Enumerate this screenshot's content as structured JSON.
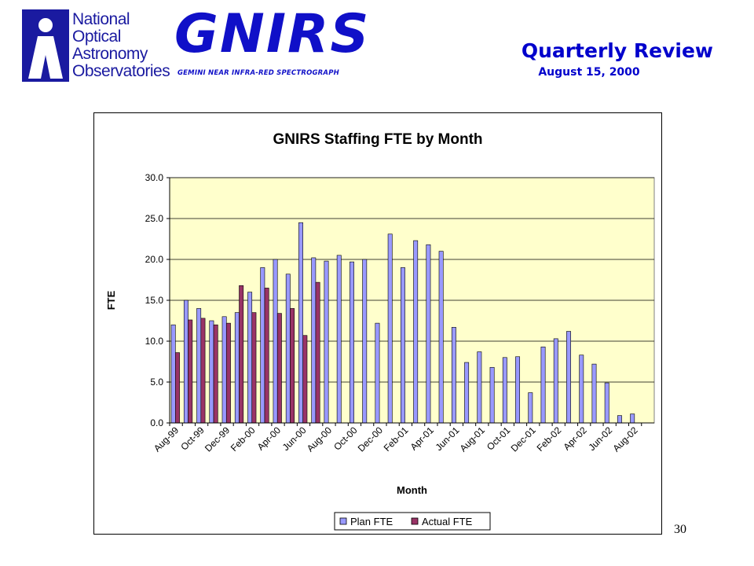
{
  "header": {
    "org_lines": [
      "National",
      "Optical",
      "Astronomy",
      "Observatories"
    ],
    "product_name": "GNIRS",
    "product_subtitle": "GEMINI NEAR INFRA-RED SPECTROGRAPH",
    "review_title": "Quarterly Review",
    "review_date": "August 15, 2000"
  },
  "page_number": "30",
  "colors": {
    "brand_blue": "#1010c8",
    "title_blue": "#0000cc",
    "plot_background": "#ffffcc",
    "plan_fill": "#9999ff",
    "actual_fill": "#993366"
  },
  "chart_data": {
    "type": "bar",
    "title": "GNIRS Staffing FTE by Month",
    "xlabel": "Month",
    "ylabel": "FTE",
    "ylim": [
      0,
      30
    ],
    "yticks": [
      "0.0",
      "5.0",
      "10.0",
      "15.0",
      "20.0",
      "25.0",
      "30.0"
    ],
    "grid": true,
    "legend_position": "bottom",
    "categories": [
      "Aug-99",
      "Sep-99",
      "Oct-99",
      "Nov-99",
      "Dec-99",
      "Jan-00",
      "Feb-00",
      "Mar-00",
      "Apr-00",
      "May-00",
      "Jun-00",
      "Jul-00",
      "Aug-00",
      "Sep-00",
      "Oct-00",
      "Nov-00",
      "Dec-00",
      "Jan-01",
      "Feb-01",
      "Mar-01",
      "Apr-01",
      "May-01",
      "Jun-01",
      "Jul-01",
      "Aug-01",
      "Sep-01",
      "Oct-01",
      "Nov-01",
      "Dec-01",
      "Jan-02",
      "Feb-02",
      "Mar-02",
      "Apr-02",
      "May-02",
      "Jun-02",
      "Jul-02",
      "Aug-02",
      "Sep-02"
    ],
    "tick_labels": [
      "Aug-99",
      "",
      "Oct-99",
      "",
      "Dec-99",
      "",
      "Feb-00",
      "",
      "Apr-00",
      "",
      "Jun-00",
      "",
      "Aug-00",
      "",
      "Oct-00",
      "",
      "Dec-00",
      "",
      "Feb-01",
      "",
      "Apr-01",
      "",
      "Jun-01",
      "",
      "Aug-01",
      "",
      "Oct-01",
      "",
      "Dec-01",
      "",
      "Feb-02",
      "",
      "Apr-02",
      "",
      "Jun-02",
      "",
      "Aug-02",
      ""
    ],
    "series": [
      {
        "name": "Plan FTE",
        "values": [
          12.0,
          15.0,
          14.0,
          12.5,
          13.0,
          13.5,
          16.0,
          19.0,
          20.0,
          18.2,
          24.5,
          20.2,
          19.8,
          20.5,
          19.7,
          20.0,
          12.2,
          23.1,
          19.0,
          22.3,
          21.8,
          21.0,
          11.7,
          7.4,
          8.7,
          6.8,
          8.0,
          8.1,
          3.7,
          9.3,
          10.3,
          11.2,
          8.3,
          7.2,
          4.9,
          0.9,
          1.1,
          null
        ]
      },
      {
        "name": "Actual FTE",
        "values": [
          8.6,
          12.6,
          12.8,
          12.0,
          12.2,
          16.8,
          13.5,
          16.5,
          13.4,
          14.0,
          10.7,
          17.2,
          null,
          null,
          null,
          null,
          null,
          null,
          null,
          null,
          null,
          null,
          null,
          null,
          null,
          null,
          null,
          null,
          null,
          null,
          null,
          null,
          null,
          null,
          null,
          null,
          null,
          null
        ]
      }
    ]
  }
}
